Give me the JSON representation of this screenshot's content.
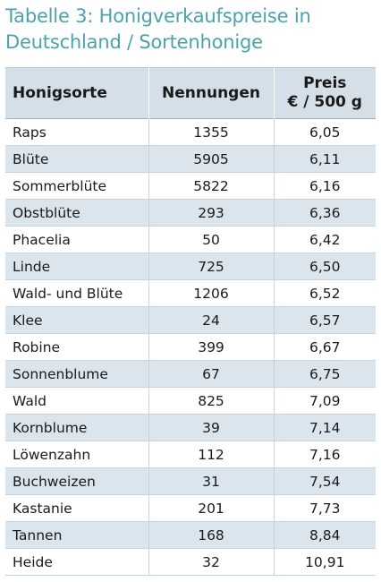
{
  "title": {
    "line1": "Tabelle 3: Honigverkaufspreise in",
    "line2": "Deutschland / Sortenhonige"
  },
  "table": {
    "headers": {
      "sorte": "Honigsorte",
      "nennungen": "Nennungen",
      "preis_line1": "Preis",
      "preis_line2": "€ / 500 g"
    },
    "rows": [
      {
        "sorte": "Raps",
        "nennungen": "1355",
        "preis": "6,05"
      },
      {
        "sorte": "Blüte",
        "nennungen": "5905",
        "preis": "6,11"
      },
      {
        "sorte": "Sommerblüte",
        "nennungen": "5822",
        "preis": "6,16"
      },
      {
        "sorte": "Obstblüte",
        "nennungen": "293",
        "preis": "6,36"
      },
      {
        "sorte": "Phacelia",
        "nennungen": "50",
        "preis": "6,42"
      },
      {
        "sorte": "Linde",
        "nennungen": "725",
        "preis": "6,50"
      },
      {
        "sorte": "Wald- und Blüte",
        "nennungen": "1206",
        "preis": "6,52"
      },
      {
        "sorte": "Klee",
        "nennungen": "24",
        "preis": "6,57"
      },
      {
        "sorte": "Robine",
        "nennungen": "399",
        "preis": "6,67"
      },
      {
        "sorte": "Sonnenblume",
        "nennungen": "67",
        "preis": "6,75"
      },
      {
        "sorte": "Wald",
        "nennungen": "825",
        "preis": "7,09"
      },
      {
        "sorte": "Kornblume",
        "nennungen": "39",
        "preis": "7,14"
      },
      {
        "sorte": "Löwenzahn",
        "nennungen": "112",
        "preis": "7,16"
      },
      {
        "sorte": "Buchweizen",
        "nennungen": "31",
        "preis": "7,54"
      },
      {
        "sorte": "Kastanie",
        "nennungen": "201",
        "preis": "7,73"
      },
      {
        "sorte": "Tannen",
        "nennungen": "168",
        "preis": "8,84"
      },
      {
        "sorte": "Heide",
        "nennungen": "32",
        "preis": "10,91"
      }
    ]
  },
  "colors": {
    "title": "#4aa3ad",
    "header_bg": "#d4dfe8",
    "stripe_bg": "#dbe5ee"
  }
}
